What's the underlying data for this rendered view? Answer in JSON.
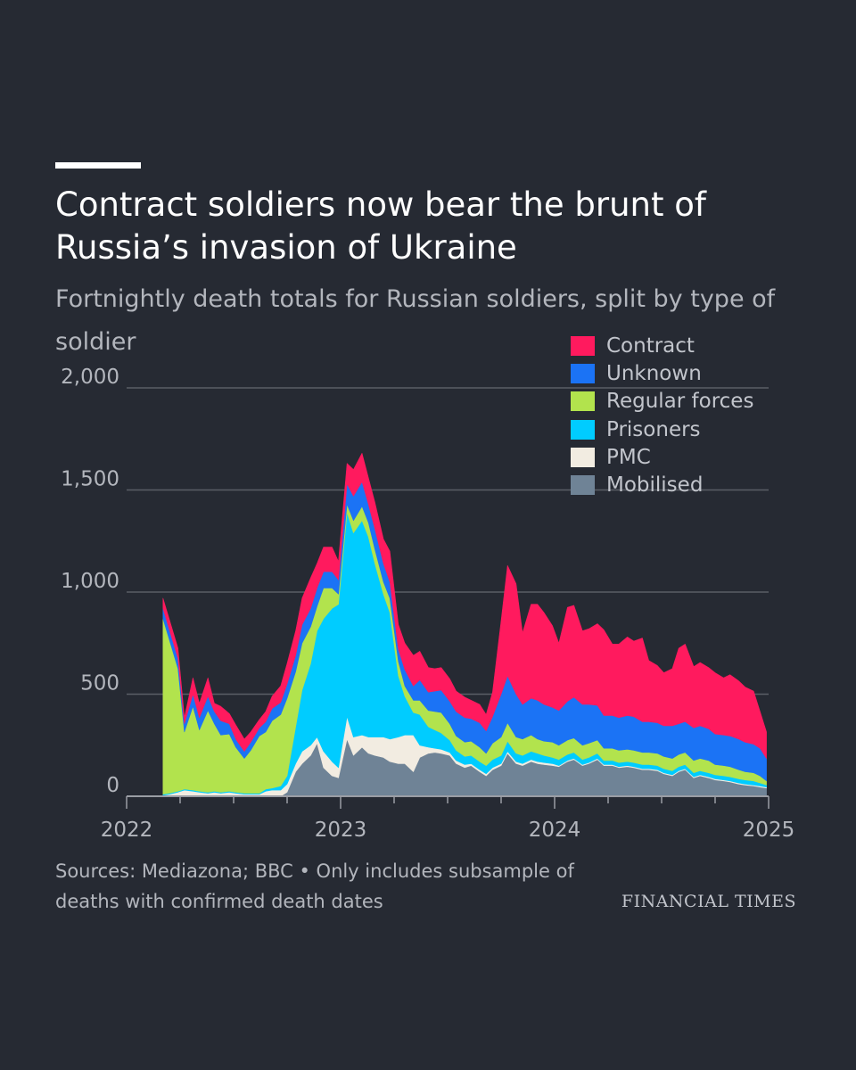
{
  "title": "Contract soldiers now bear the brunt of Russia’s invasion of Ukraine",
  "subtitle": "Fortnightly death totals for Russian soldiers, split by type of soldier",
  "source": "Sources: Mediazona; BBC • Only includes subsample of deaths with confirmed death dates",
  "brand": "FINANCIAL TIMES",
  "chart_data": {
    "type": "area",
    "stacked": true,
    "x_unit": "date",
    "x_range": [
      2022.0,
      2025.0
    ],
    "ylim": [
      0,
      2000
    ],
    "y_ticks": [
      0,
      500,
      1000,
      1500,
      2000
    ],
    "y_tick_labels": [
      "0",
      "500",
      "1,000",
      "1,500",
      "2,000"
    ],
    "x_ticks": [
      2022,
      2023,
      2024,
      2025
    ],
    "x_tick_labels": [
      "2022",
      "2023",
      "2024",
      "2025"
    ],
    "grid": "horizontal",
    "legend_position": "top-right",
    "x": [
      2022.17,
      2022.2,
      2022.24,
      2022.27,
      2022.31,
      2022.34,
      2022.38,
      2022.41,
      2022.44,
      2022.48,
      2022.51,
      2022.55,
      2022.58,
      2022.62,
      2022.65,
      2022.68,
      2022.72,
      2022.75,
      2022.79,
      2022.82,
      2022.86,
      2022.89,
      2022.92,
      2022.96,
      2022.99,
      2023.03,
      2023.06,
      2023.1,
      2023.13,
      2023.16,
      2023.2,
      2023.23,
      2023.27,
      2023.3,
      2023.34,
      2023.37,
      2023.41,
      2023.44,
      2023.47,
      2023.51,
      2023.54,
      2023.58,
      2023.61,
      2023.65,
      2023.68,
      2023.71,
      2023.75,
      2023.78,
      2023.82,
      2023.85,
      2023.89,
      2023.92,
      2023.95,
      2023.99,
      2024.02,
      2024.06,
      2024.09,
      2024.13,
      2024.16,
      2024.2,
      2024.23,
      2024.27,
      2024.3,
      2024.34,
      2024.37,
      2024.41,
      2024.44,
      2024.48,
      2024.51,
      2024.55,
      2024.58,
      2024.61,
      2024.65,
      2024.68,
      2024.72,
      2024.75,
      2024.79,
      2024.82,
      2024.86,
      2024.89,
      2024.93,
      2024.96,
      2024.99
    ],
    "series": [
      {
        "name": "Mobilised",
        "color": "#6f8396",
        "values": [
          0,
          0,
          0,
          0,
          0,
          0,
          0,
          0,
          0,
          0,
          0,
          0,
          0,
          0,
          0,
          0,
          0,
          20,
          120,
          160,
          200,
          260,
          140,
          100,
          90,
          280,
          200,
          240,
          210,
          200,
          190,
          170,
          160,
          160,
          120,
          190,
          210,
          215,
          210,
          200,
          160,
          140,
          150,
          120,
          100,
          130,
          150,
          210,
          160,
          150,
          170,
          160,
          155,
          150,
          145,
          170,
          180,
          150,
          160,
          180,
          150,
          150,
          140,
          145,
          140,
          130,
          130,
          125,
          110,
          100,
          120,
          130,
          90,
          100,
          90,
          80,
          75,
          70,
          60,
          55,
          50,
          45,
          40
        ]
      },
      {
        "name": "PMC",
        "color": "#f2ece1",
        "values": [
          5,
          10,
          20,
          30,
          25,
          20,
          15,
          20,
          15,
          20,
          15,
          10,
          10,
          10,
          25,
          30,
          30,
          40,
          40,
          60,
          50,
          30,
          80,
          70,
          50,
          110,
          90,
          60,
          80,
          90,
          100,
          110,
          130,
          140,
          180,
          60,
          30,
          20,
          20,
          15,
          15,
          15,
          10,
          10,
          10,
          10,
          10,
          10,
          10,
          10,
          10,
          10,
          10,
          10,
          5,
          5,
          5,
          5,
          5,
          5,
          5,
          5,
          5,
          5,
          5,
          5,
          5,
          5,
          5,
          5,
          5,
          5,
          5,
          5,
          5,
          5,
          5,
          5,
          5,
          5,
          5,
          5,
          5
        ]
      },
      {
        "name": "Prisoners",
        "color": "#00ccff",
        "values": [
          5,
          5,
          5,
          5,
          5,
          5,
          5,
          5,
          5,
          5,
          5,
          5,
          5,
          5,
          10,
          10,
          20,
          40,
          180,
          300,
          400,
          520,
          650,
          750,
          800,
          1000,
          1000,
          1050,
          980,
          850,
          700,
          620,
          300,
          190,
          110,
          150,
          100,
          90,
          80,
          60,
          50,
          40,
          40,
          40,
          40,
          40,
          40,
          50,
          40,
          40,
          40,
          40,
          35,
          30,
          30,
          30,
          30,
          25,
          25,
          25,
          20,
          20,
          20,
          20,
          20,
          20,
          20,
          20,
          20,
          20,
          20,
          20,
          20,
          20,
          20,
          20,
          20,
          20,
          20,
          20,
          20,
          15,
          10
        ]
      },
      {
        "name": "Regular forces",
        "color": "#b2e34d",
        "values": [
          860,
          750,
          600,
          280,
          410,
          300,
          400,
          330,
          280,
          280,
          220,
          170,
          210,
          280,
          280,
          330,
          350,
          380,
          270,
          230,
          180,
          120,
          150,
          100,
          50,
          40,
          60,
          70,
          70,
          70,
          60,
          70,
          70,
          50,
          60,
          70,
          80,
          90,
          100,
          80,
          70,
          70,
          70,
          70,
          60,
          80,
          90,
          90,
          80,
          80,
          80,
          70,
          70,
          75,
          70,
          70,
          70,
          70,
          70,
          65,
          60,
          60,
          60,
          60,
          60,
          60,
          60,
          60,
          60,
          60,
          60,
          60,
          60,
          60,
          60,
          50,
          50,
          50,
          45,
          40,
          40,
          35,
          20
        ]
      },
      {
        "name": "Unknown",
        "color": "#1b73f5",
        "values": [
          50,
          50,
          50,
          40,
          60,
          60,
          70,
          60,
          70,
          50,
          40,
          35,
          40,
          40,
          50,
          60,
          60,
          70,
          80,
          90,
          90,
          90,
          80,
          80,
          70,
          100,
          120,
          120,
          90,
          100,
          90,
          80,
          60,
          80,
          70,
          100,
          90,
          100,
          110,
          110,
          120,
          120,
          110,
          120,
          110,
          130,
          210,
          230,
          210,
          170,
          180,
          190,
          180,
          170,
          170,
          190,
          200,
          200,
          190,
          170,
          160,
          160,
          160,
          165,
          165,
          150,
          150,
          150,
          150,
          160,
          150,
          150,
          160,
          160,
          155,
          150,
          150,
          150,
          150,
          145,
          140,
          135,
          110
        ]
      },
      {
        "name": "Contract",
        "color": "#ff1a5e",
        "values": [
          50,
          50,
          50,
          30,
          80,
          70,
          90,
          40,
          70,
          50,
          70,
          60,
          50,
          40,
          50,
          60,
          80,
          100,
          120,
          130,
          150,
          120,
          120,
          120,
          90,
          100,
          130,
          140,
          130,
          130,
          120,
          150,
          120,
          130,
          150,
          140,
          120,
          110,
          110,
          110,
          100,
          100,
          90,
          90,
          80,
          120,
          360,
          540,
          540,
          350,
          460,
          470,
          450,
          400,
          330,
          460,
          450,
          360,
          370,
          400,
          420,
          350,
          360,
          385,
          370,
          410,
          300,
          280,
          260,
          280,
          370,
          380,
          300,
          310,
          300,
          300,
          280,
          300,
          285,
          270,
          260,
          180,
          130
        ]
      }
    ]
  }
}
